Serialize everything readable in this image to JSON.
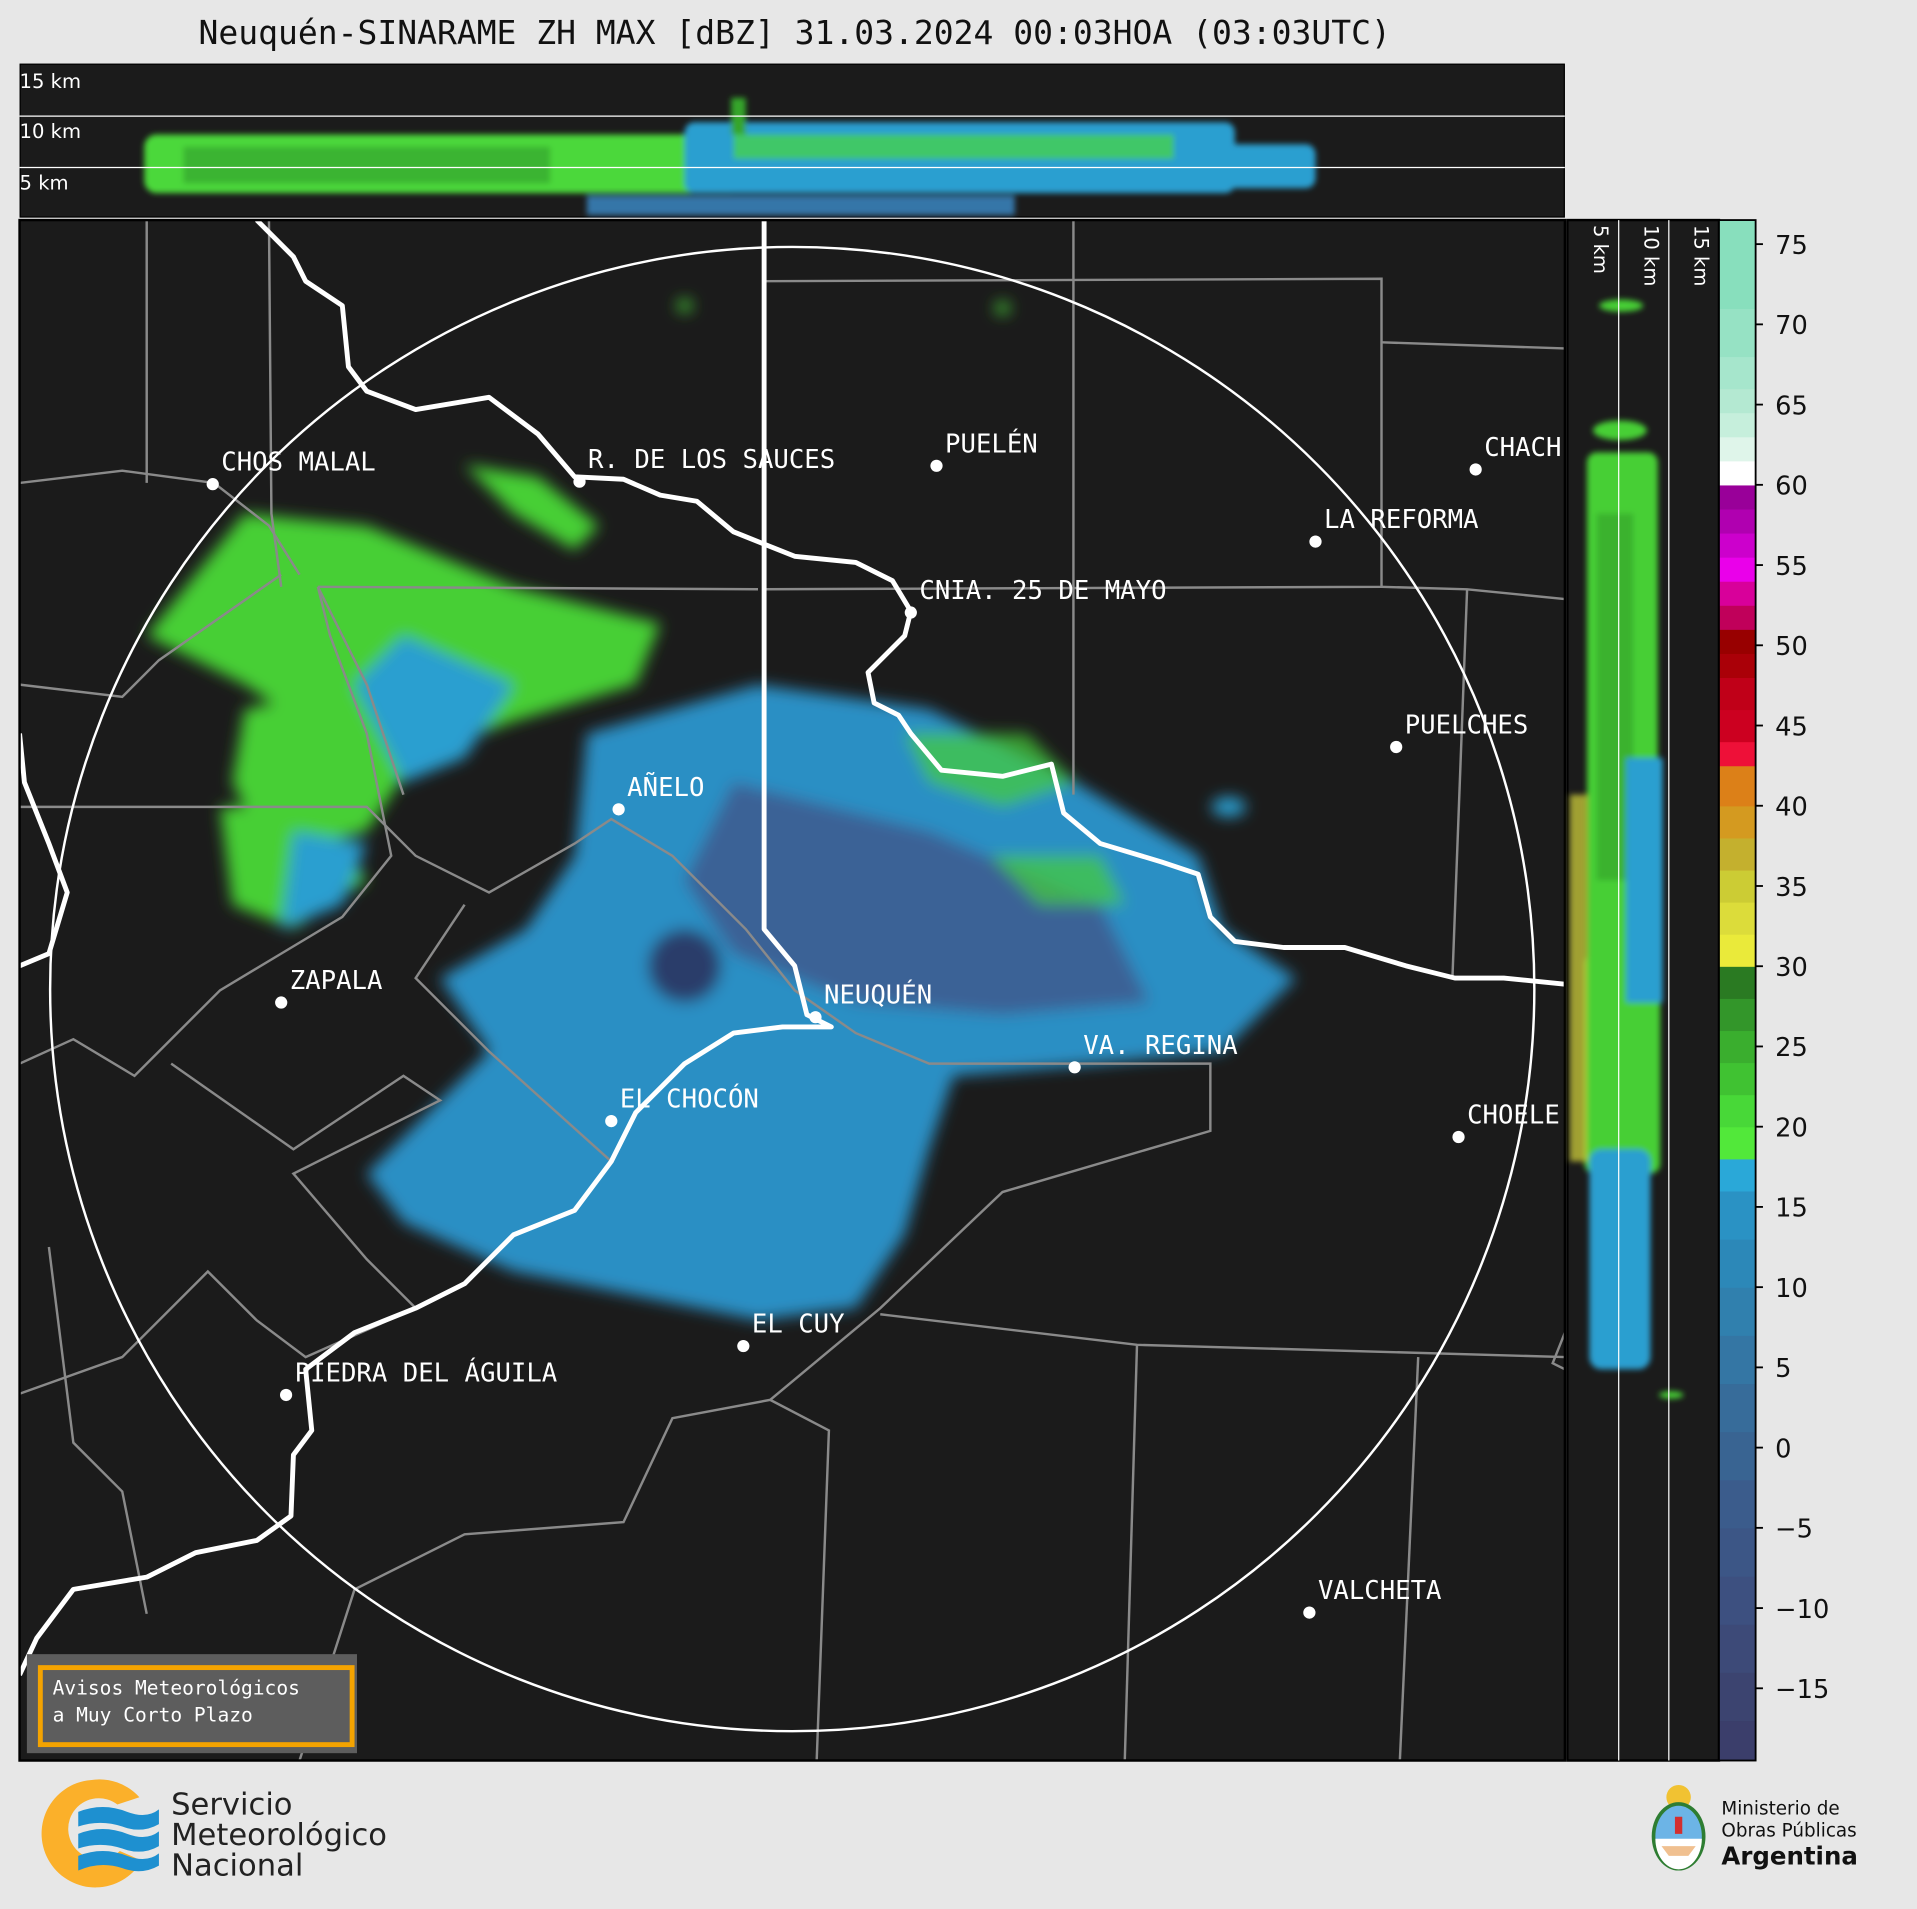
{
  "title": "Neuquén-SINARAME ZH MAX [dBZ] 31.03.2024 00:03HOA (03:03UTC)",
  "top_profile": {
    "height_labels": [
      "15 km",
      "10 km",
      "5 km"
    ]
  },
  "side_profile": {
    "height_labels": [
      "5 km",
      "10 km",
      "15 km"
    ]
  },
  "colorbar": {
    "unit": "dBZ",
    "range": [
      -19.5,
      76.5
    ],
    "ticks": [
      "75",
      "70",
      "65",
      "60",
      "55",
      "50",
      "45",
      "40",
      "35",
      "30",
      "25",
      "20",
      "15",
      "10",
      "5",
      "0",
      "−5",
      "−10",
      "−15"
    ],
    "tick_values": [
      75,
      70,
      65,
      60,
      55,
      50,
      45,
      40,
      35,
      30,
      25,
      20,
      15,
      10,
      5,
      0,
      -5,
      -10,
      -15
    ],
    "bins": [
      {
        "from": -19.5,
        "to": -17,
        "color": "#3b3e6b"
      },
      {
        "from": -17,
        "to": -14,
        "color": "#3c4470"
      },
      {
        "from": -14,
        "to": -11,
        "color": "#3d4a78"
      },
      {
        "from": -11,
        "to": -8,
        "color": "#3d5080"
      },
      {
        "from": -8,
        "to": -5,
        "color": "#3c5686"
      },
      {
        "from": -5,
        "to": -2,
        "color": "#3b5c8c"
      },
      {
        "from": -2,
        "to": 1,
        "color": "#396492"
      },
      {
        "from": 1,
        "to": 4,
        "color": "#376c9a"
      },
      {
        "from": 4,
        "to": 7,
        "color": "#3476a4"
      },
      {
        "from": 7,
        "to": 10,
        "color": "#3080ae"
      },
      {
        "from": 10,
        "to": 13,
        "color": "#2c88b8"
      },
      {
        "from": 13,
        "to": 16,
        "color": "#2a92c4"
      },
      {
        "from": 16,
        "to": 18,
        "color": "#2aa8d8"
      },
      {
        "from": 18,
        "to": 20,
        "color": "#52e83a"
      },
      {
        "from": 20,
        "to": 22,
        "color": "#48d838"
      },
      {
        "from": 22,
        "to": 24,
        "color": "#40c232"
      },
      {
        "from": 24,
        "to": 26,
        "color": "#3aae2e"
      },
      {
        "from": 26,
        "to": 28,
        "color": "#33962a"
      },
      {
        "from": 28,
        "to": 30,
        "color": "#2a7a22"
      },
      {
        "from": 30,
        "to": 32,
        "color": "#eaea3a"
      },
      {
        "from": 32,
        "to": 34,
        "color": "#dcdc3a"
      },
      {
        "from": 34,
        "to": 36,
        "color": "#cccc34"
      },
      {
        "from": 36,
        "to": 38,
        "color": "#c4b02e"
      },
      {
        "from": 38,
        "to": 40,
        "color": "#d49a20"
      },
      {
        "from": 40,
        "to": 42.5,
        "color": "#dc8018"
      },
      {
        "from": 42.5,
        "to": 44,
        "color": "#ee1038"
      },
      {
        "from": 44,
        "to": 46,
        "color": "#cc0020"
      },
      {
        "from": 46,
        "to": 48,
        "color": "#c00018"
      },
      {
        "from": 48,
        "to": 49.5,
        "color": "#aa0008"
      },
      {
        "from": 49.5,
        "to": 51,
        "color": "#980000"
      },
      {
        "from": 51,
        "to": 52.5,
        "color": "#c0005a"
      },
      {
        "from": 52.5,
        "to": 54,
        "color": "#d8009a"
      },
      {
        "from": 54,
        "to": 55.5,
        "color": "#ea00ea"
      },
      {
        "from": 55.5,
        "to": 57,
        "color": "#cc00cc"
      },
      {
        "from": 57,
        "to": 58.5,
        "color": "#b000b0"
      },
      {
        "from": 58.5,
        "to": 60,
        "color": "#990099"
      },
      {
        "from": 60,
        "to": 61.5,
        "color": "#ffffff"
      },
      {
        "from": 61.5,
        "to": 63,
        "color": "#dff5ea"
      },
      {
        "from": 63,
        "to": 64.5,
        "color": "#c6efdc"
      },
      {
        "from": 64.5,
        "to": 66,
        "color": "#b4e9d2"
      },
      {
        "from": 66,
        "to": 68,
        "color": "#a6e6cc"
      },
      {
        "from": 68,
        "to": 71,
        "color": "#96e2c4"
      },
      {
        "from": 71,
        "to": 76.5,
        "color": "#88dfbd"
      }
    ]
  },
  "cities": [
    {
      "name": "CHOS MALAL"
    },
    {
      "name": "R. DE LOS SAUCES"
    },
    {
      "name": "PUELÉN"
    },
    {
      "name": "CHACH"
    },
    {
      "name": "LA REFORMA"
    },
    {
      "name": "CNIA. 25 DE MAYO"
    },
    {
      "name": "PUELCHES"
    },
    {
      "name": "AÑELO"
    },
    {
      "name": "ZAPALA"
    },
    {
      "name": "NEUQUÉN"
    },
    {
      "name": "VA. REGINA"
    },
    {
      "name": "EL CHOCÓN"
    },
    {
      "name": "CHOELE"
    },
    {
      "name": "EL CUY"
    },
    {
      "name": "PIEDRA DEL ÁGUILA"
    },
    {
      "name": "VALCHETA"
    }
  ],
  "warning_box": {
    "line1": "Avisos Meteorológicos",
    "line2": "a Muy Corto Plazo"
  },
  "smn_logo": {
    "line1": "Servicio",
    "line2": "Meteorológico",
    "line3": "Nacional"
  },
  "ministry_logo": {
    "line1": "Ministerio de",
    "line2": "Obras Públicas",
    "line3": "Argentina"
  },
  "colors": {
    "background": "#e7e7e7",
    "map": "#1b1b1b",
    "warning_border": "#f4a300",
    "smn_orange": "#fbb02a",
    "smn_blue": "#1e90d0"
  }
}
